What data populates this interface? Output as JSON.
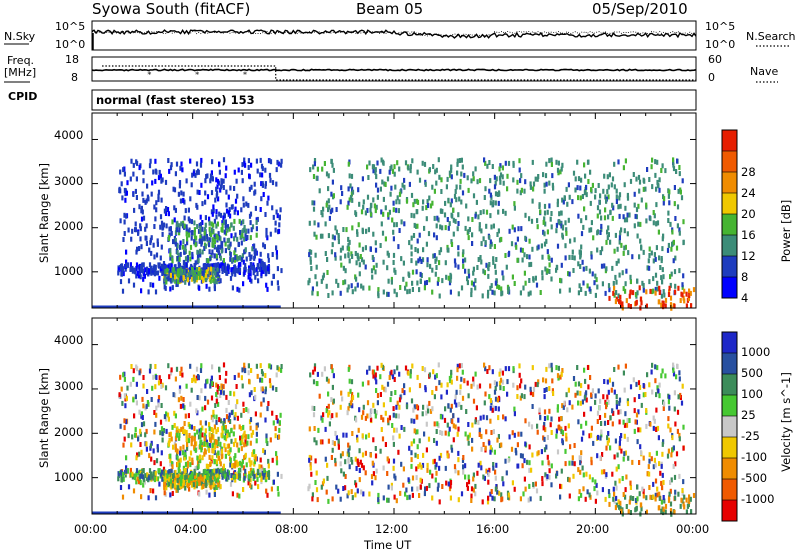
{
  "header": {
    "station": "Syowa South (fitACF)",
    "beam": "Beam 05",
    "date": "05/Sep/2010"
  },
  "top_panel": {
    "left_label": "N.Sky",
    "right_label": "N.Search",
    "left_ticks": [
      "10^5",
      "10^0"
    ],
    "right_ticks": [
      "10^5",
      "10^0"
    ]
  },
  "freq_panel": {
    "left_label_1": "Freq.",
    "left_label_2": "[MHz]",
    "left_ticks": [
      "18",
      "8"
    ],
    "right_label": "Nave",
    "right_ticks": [
      "60",
      "0"
    ],
    "cpid_label": "CPID",
    "cpid_value": "normal (fast stereo) 153"
  },
  "chart_data": [
    {
      "type": "heatmap",
      "name": "power-panel",
      "ylabel": "Slant Range [km]",
      "ylim": [
        180,
        4600
      ],
      "yticks": [
        1000,
        2000,
        3000,
        4000
      ],
      "xlim": [
        0,
        24
      ],
      "colorbar": {
        "label": "Power [dB]",
        "ticks": [
          "4",
          "8",
          "12",
          "16",
          "20",
          "24",
          "28"
        ],
        "colors": [
          "#0000ff",
          "#1e3cbe",
          "#3c8c78",
          "#46b432",
          "#f0c800",
          "#f08c00",
          "#f05a00",
          "#e61e00"
        ]
      }
    },
    {
      "type": "heatmap",
      "name": "velocity-panel",
      "ylabel": "Slant Range [km]",
      "ylim": [
        180,
        4600
      ],
      "yticks": [
        1000,
        2000,
        3000,
        4000
      ],
      "xlim": [
        0,
        24
      ],
      "xlabel": "Time UT",
      "xticks": [
        "00:00",
        "04:00",
        "08:00",
        "12:00",
        "16:00",
        "20:00",
        "00:00"
      ],
      "colorbar": {
        "label": "Velocity [m s^-1]",
        "ticks": [
          "1000",
          "500",
          "100",
          "25",
          "-25",
          "-100",
          "-500",
          "-1000"
        ],
        "colors": [
          "#1e28c8",
          "#2850a0",
          "#3c8c5a",
          "#46c832",
          "#c8c8c8",
          "#f0c800",
          "#f08c00",
          "#f05a00",
          "#e60000"
        ]
      }
    }
  ]
}
